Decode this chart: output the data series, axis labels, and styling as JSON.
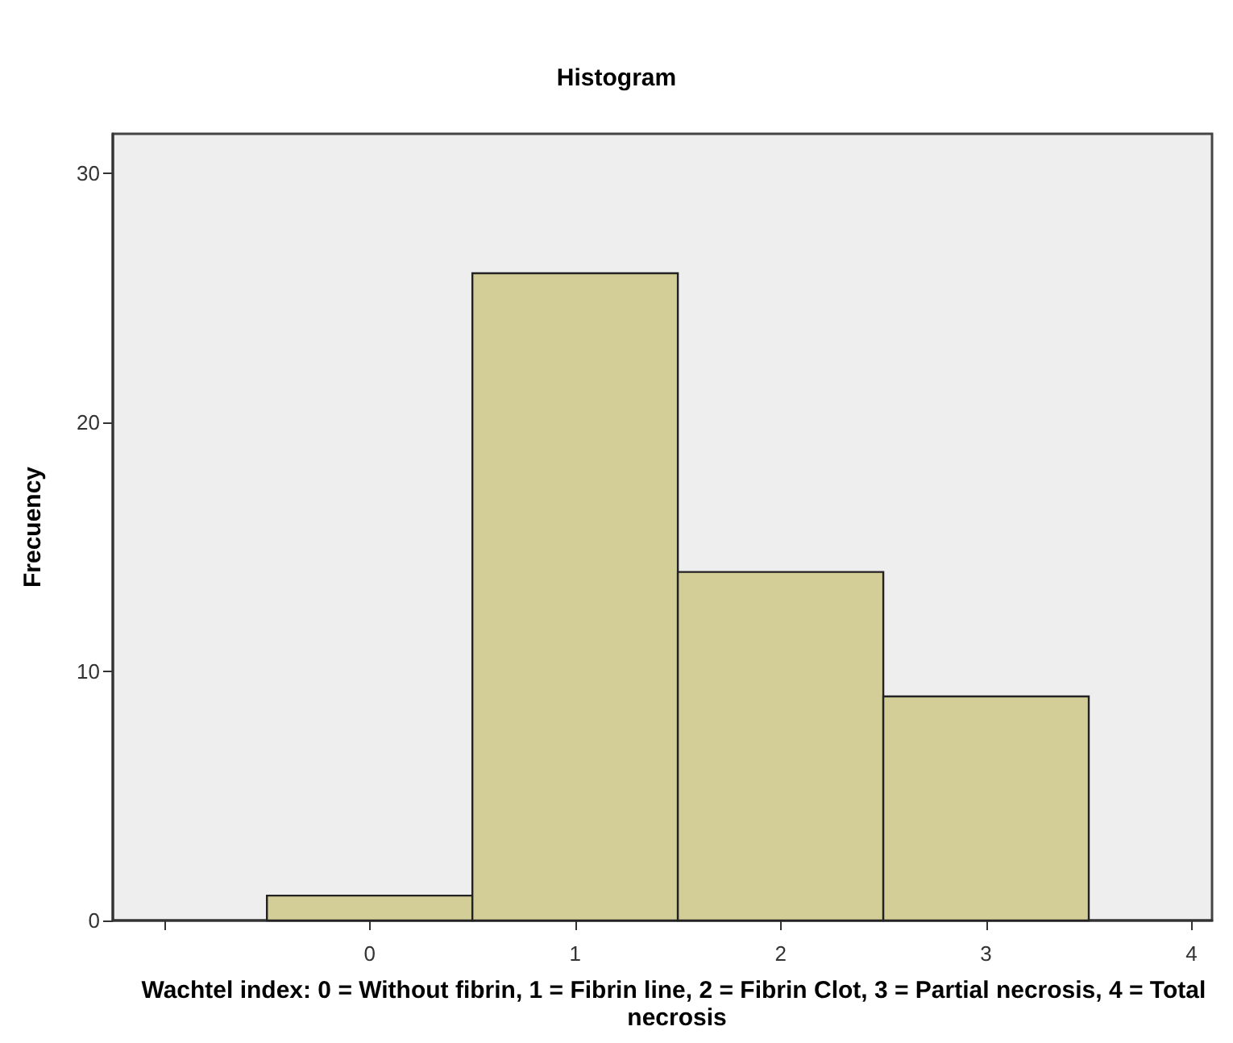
{
  "chart_data": {
    "type": "histogram",
    "title": "Histogram",
    "xlabel": "Wachtel index: 0 = Without fibrin, 1 = Fibrin line, 2 = Fibrin Clot, 3 = Partial necrosis, 4 = Total necrosis",
    "ylabel": "Frecuency",
    "bins": [
      -0.5,
      0.5,
      1.5,
      2.5,
      3.5
    ],
    "values": [
      1,
      26,
      14,
      9
    ],
    "color": "#d3ce98",
    "xlim": [
      -1.25,
      4.1
    ],
    "xticks": [
      {
        "value": -1,
        "label": null
      },
      0,
      1,
      2,
      3,
      4
    ],
    "ylim": [
      0,
      31.6
    ],
    "yticks": [
      0,
      10,
      20,
      30
    ],
    "grid": false
  }
}
